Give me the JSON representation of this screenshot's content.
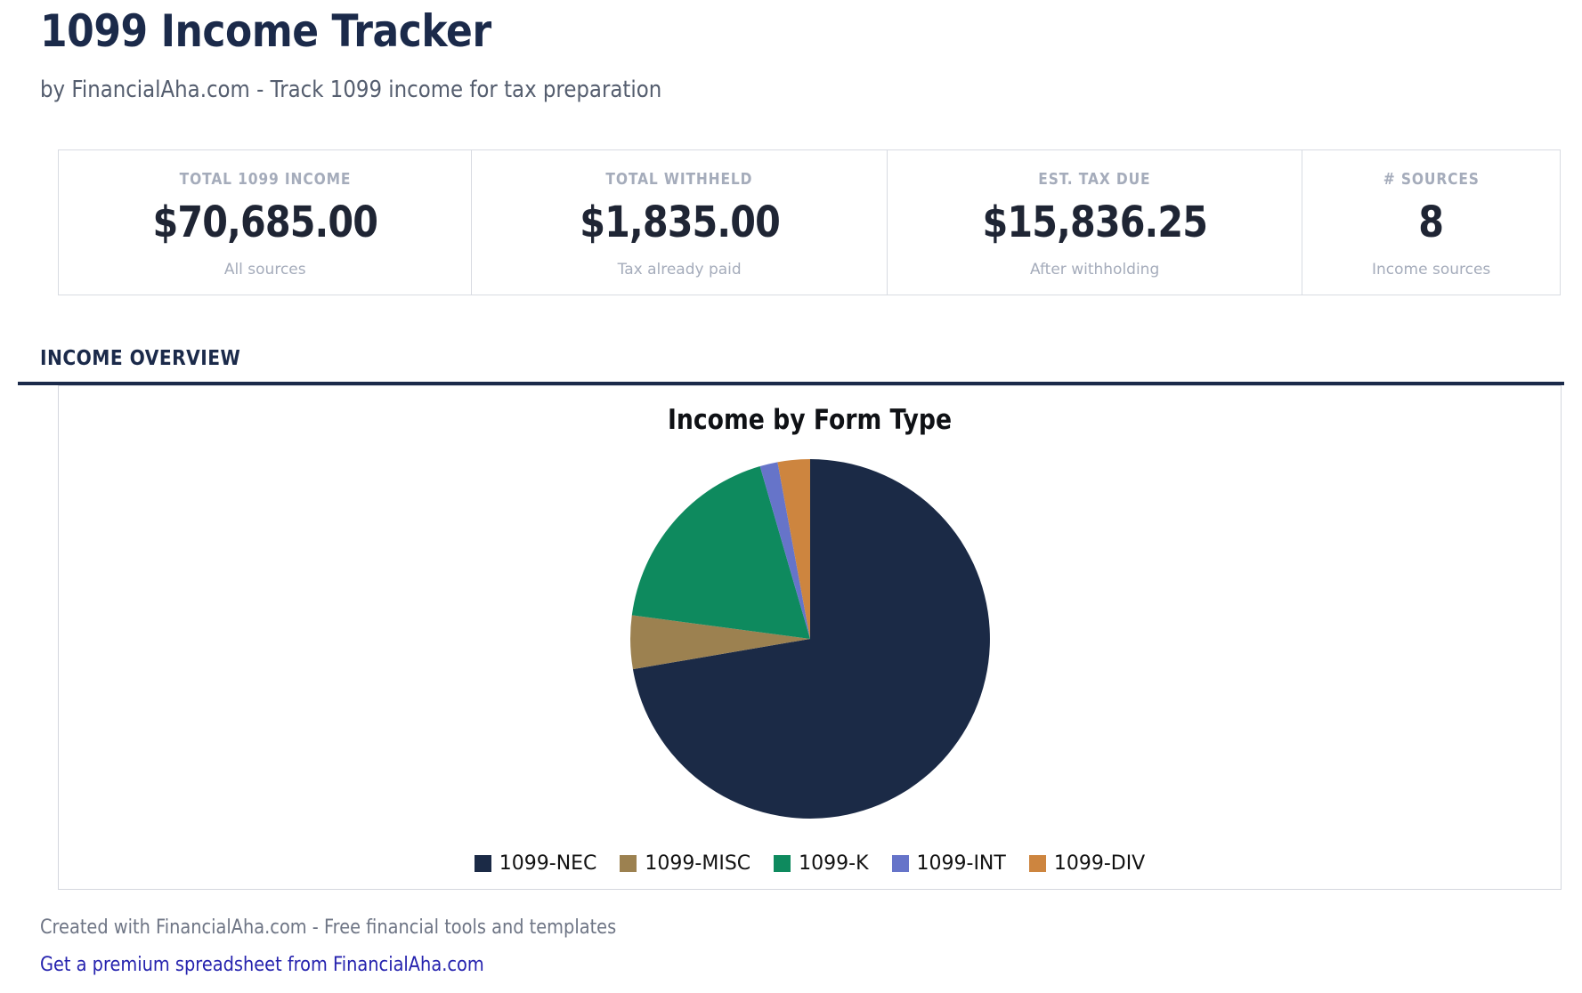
{
  "page": {
    "title": "1099 Income Tracker",
    "subtitle": "by FinancialAha.com - Track 1099 income for tax preparation"
  },
  "stats": {
    "cards": [
      {
        "label": "TOTAL 1099 INCOME",
        "value": "$70,685.00",
        "sublabel": "All sources"
      },
      {
        "label": "TOTAL WITHHELD",
        "value": "$1,835.00",
        "sublabel": "Tax already paid"
      },
      {
        "label": "EST. TAX DUE",
        "value": "$15,836.25",
        "sublabel": "After withholding"
      },
      {
        "label": "# SOURCES",
        "value": "8",
        "sublabel": "Income sources"
      }
    ]
  },
  "section": {
    "heading": "INCOME OVERVIEW"
  },
  "chart_data": {
    "type": "pie",
    "title": "Income by Form Type",
    "categories": [
      "1099-NEC",
      "1099-MISC",
      "1099-K",
      "1099-INT",
      "1099-DIV"
    ],
    "values": [
      72.3,
      4.8,
      18.4,
      1.6,
      2.9
    ],
    "values_unit": "percent, estimated from slice angles",
    "colors": [
      "#1b2a46",
      "#9c8150",
      "#0e8a5e",
      "#6674c9",
      "#cd853f"
    ],
    "start_angle_deg": 0,
    "direction": "clockwise",
    "legend_position": "bottom"
  },
  "footer": {
    "credit": "Created with FinancialAha.com - Free financial tools and templates",
    "link_label": "Get a premium spreadsheet from FinancialAha.com"
  },
  "theme": {
    "heading_navy": "#1b2a4a",
    "muted_gray": "#a5acbb",
    "border_gray": "#d8dbe2",
    "link_blue": "#2522ae"
  }
}
